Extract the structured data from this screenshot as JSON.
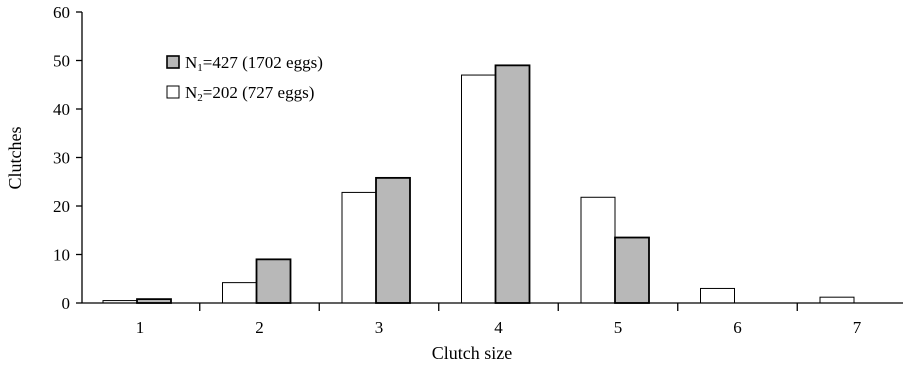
{
  "chart_data": {
    "type": "bar",
    "xlabel": "Clutch size",
    "ylabel": "Clutches",
    "ylim": [
      0,
      60
    ],
    "yticks": [
      0,
      10,
      20,
      30,
      40,
      50,
      60
    ],
    "categories": [
      "1",
      "2",
      "3",
      "4",
      "5",
      "6",
      "7"
    ],
    "legend_position": "top-left",
    "series": [
      {
        "key": "N2",
        "legend_main": "N",
        "legend_sub": "2",
        "legend_rest": "=202 (727 eggs)",
        "color": "#ffffff",
        "values": [
          0.5,
          4.2,
          22.8,
          47.0,
          21.8,
          3.0,
          1.2
        ]
      },
      {
        "key": "N1",
        "legend_main": "N",
        "legend_sub": "1",
        "legend_rest": "=427 (1702 eggs)",
        "color": "#b8b8b8",
        "values": [
          0.8,
          9.0,
          25.8,
          49.0,
          13.5,
          0,
          0
        ]
      }
    ]
  }
}
